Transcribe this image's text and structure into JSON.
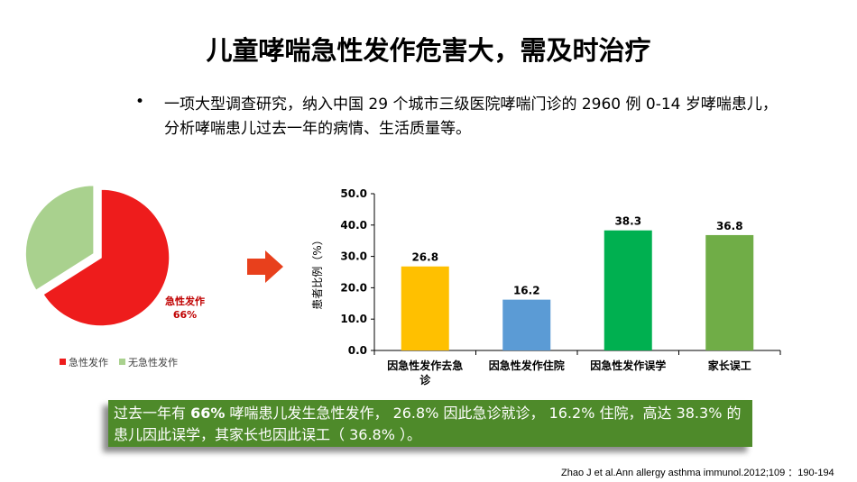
{
  "title": "儿童哮喘急性发作危害大，需及时治疗",
  "bullet": {
    "marker": "•",
    "text": "一项大型调查研究，纳入中国 29 个城市三级医院哮喘门诊的 2960 例 0-14 岁哮喘患儿，分析哮喘患儿过去一年的病情、生活质量等。"
  },
  "arrow_icon": "right-arrow-icon",
  "chart_data": [
    {
      "type": "pie",
      "labels": [
        "急性发作",
        "无急性发作"
      ],
      "values": [
        66,
        34
      ],
      "colors": [
        "#ee1c1c",
        "#a9d18e"
      ],
      "data_label": {
        "name": "急性发作",
        "value": "66%"
      },
      "legend": [
        "急性发作",
        "无急性发作"
      ],
      "legend_placement": "bottom"
    },
    {
      "type": "bar",
      "categories": [
        "因急性发作去急诊",
        "因急性发作住院",
        "因急性发作误学",
        "家长误工"
      ],
      "values": [
        26.8,
        16.2,
        38.3,
        36.8
      ],
      "value_labels": [
        "26.8",
        "16.2",
        "38.3",
        "36.8"
      ],
      "colors": [
        "#ffc000",
        "#5b9bd5",
        "#00b050",
        "#70ad47"
      ],
      "ylabel": "患者比例（%）",
      "ylim": [
        0,
        50
      ],
      "yticks": [
        "0.0",
        "10.0",
        "20.0",
        "30.0",
        "40.0",
        "50.0"
      ],
      "grid": false
    }
  ],
  "callout": {
    "part1": "过去一年有 ",
    "highlight": "66%",
    "part2": " 哮喘患儿发生急性发作， 26.8% 因此急诊就诊， 16.2% 住院，高达 38.3% 的患儿因此误学，其家长也因此误工（ 36.8% ）。"
  },
  "citation": "Zhao J   et al.Ann allergy asthma immunol.2012;109 ：190-194"
}
